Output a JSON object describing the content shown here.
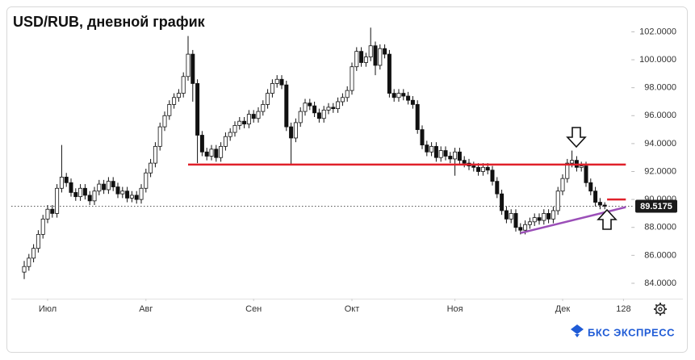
{
  "chart_data": {
    "type": "candlestick",
    "title": "USD/RUB, дневной график",
    "brand": "БКС ЭКСПРЕСС",
    "candles": [
      [
        84.8,
        85.6,
        84.3,
        85.2
      ],
      [
        85.2,
        86.1,
        84.9,
        85.8
      ],
      [
        85.8,
        86.8,
        85.5,
        86.5
      ],
      [
        86.5,
        87.8,
        86.2,
        87.5
      ],
      [
        87.5,
        88.9,
        87.2,
        88.6
      ],
      [
        88.6,
        89.6,
        88.3,
        89.3
      ],
      [
        89.3,
        89.6,
        88.7,
        89.0
      ],
      [
        89.0,
        91.1,
        88.7,
        90.8
      ],
      [
        90.8,
        93.9,
        90.5,
        91.6
      ],
      [
        91.6,
        91.9,
        90.9,
        91.2
      ],
      [
        91.2,
        91.5,
        90.2,
        90.5
      ],
      [
        90.5,
        90.8,
        89.9,
        90.2
      ],
      [
        90.2,
        91.1,
        89.9,
        90.8
      ],
      [
        90.8,
        91.1,
        90.0,
        90.3
      ],
      [
        90.3,
        90.6,
        89.6,
        89.9
      ],
      [
        89.9,
        90.9,
        89.6,
        90.6
      ],
      [
        90.6,
        91.4,
        90.3,
        91.1
      ],
      [
        91.1,
        91.4,
        90.4,
        90.7
      ],
      [
        90.7,
        91.6,
        90.4,
        91.3
      ],
      [
        91.3,
        91.6,
        90.6,
        90.9
      ],
      [
        90.9,
        91.2,
        90.1,
        90.4
      ],
      [
        90.4,
        90.9,
        90.1,
        90.6
      ],
      [
        90.6,
        90.9,
        89.8,
        90.1
      ],
      [
        90.1,
        90.6,
        89.8,
        90.3
      ],
      [
        90.3,
        90.6,
        89.7,
        90.0
      ],
      [
        90.0,
        91.1,
        89.7,
        90.8
      ],
      [
        90.8,
        92.2,
        90.5,
        91.9
      ],
      [
        91.9,
        92.9,
        91.6,
        92.6
      ],
      [
        92.6,
        94.1,
        92.3,
        93.8
      ],
      [
        93.8,
        95.5,
        93.5,
        95.2
      ],
      [
        95.2,
        96.3,
        94.9,
        96.0
      ],
      [
        96.0,
        97.1,
        95.7,
        96.8
      ],
      [
        96.8,
        97.6,
        96.5,
        97.3
      ],
      [
        97.3,
        97.9,
        97.0,
        97.6
      ],
      [
        97.6,
        99.1,
        97.3,
        98.8
      ],
      [
        98.8,
        101.7,
        98.5,
        100.4
      ],
      [
        100.4,
        100.7,
        97.0,
        98.3
      ],
      [
        98.3,
        98.6,
        92.6,
        94.6
      ],
      [
        94.6,
        94.9,
        93.1,
        93.4
      ],
      [
        93.4,
        93.7,
        92.8,
        93.1
      ],
      [
        93.1,
        93.9,
        92.8,
        93.6
      ],
      [
        93.6,
        93.9,
        92.7,
        93.0
      ],
      [
        93.0,
        94.1,
        92.7,
        93.8
      ],
      [
        93.8,
        94.8,
        93.5,
        94.5
      ],
      [
        94.5,
        95.1,
        94.2,
        94.8
      ],
      [
        94.8,
        95.6,
        94.5,
        95.3
      ],
      [
        95.3,
        95.9,
        95.0,
        95.6
      ],
      [
        95.6,
        95.9,
        95.1,
        95.4
      ],
      [
        95.4,
        96.4,
        95.1,
        96.1
      ],
      [
        96.1,
        96.4,
        95.5,
        95.8
      ],
      [
        95.8,
        96.6,
        95.5,
        96.3
      ],
      [
        96.3,
        97.1,
        96.0,
        96.8
      ],
      [
        96.8,
        97.9,
        96.5,
        97.6
      ],
      [
        97.6,
        98.6,
        97.3,
        98.3
      ],
      [
        98.3,
        98.9,
        98.0,
        98.6
      ],
      [
        98.6,
        98.9,
        97.9,
        98.2
      ],
      [
        98.2,
        98.5,
        94.9,
        95.2
      ],
      [
        95.2,
        95.5,
        92.5,
        94.4
      ],
      [
        94.4,
        95.8,
        94.1,
        95.5
      ],
      [
        95.5,
        96.6,
        95.2,
        96.3
      ],
      [
        96.3,
        97.2,
        96.0,
        96.9
      ],
      [
        96.9,
        97.2,
        96.4,
        96.7
      ],
      [
        96.7,
        97.0,
        95.9,
        96.2
      ],
      [
        96.2,
        96.5,
        95.5,
        95.8
      ],
      [
        95.8,
        96.7,
        95.5,
        96.4
      ],
      [
        96.4,
        96.9,
        96.1,
        96.6
      ],
      [
        96.6,
        96.9,
        96.2,
        96.5
      ],
      [
        96.5,
        97.3,
        96.2,
        97.0
      ],
      [
        97.0,
        97.6,
        96.7,
        97.3
      ],
      [
        97.3,
        98.1,
        97.0,
        97.8
      ],
      [
        97.8,
        99.8,
        97.5,
        99.5
      ],
      [
        99.5,
        100.9,
        99.2,
        100.6
      ],
      [
        100.6,
        100.9,
        99.5,
        99.8
      ],
      [
        99.8,
        100.5,
        99.5,
        100.2
      ],
      [
        100.2,
        102.3,
        99.9,
        101.0
      ],
      [
        101.0,
        101.3,
        98.9,
        99.6
      ],
      [
        99.6,
        101.1,
        99.3,
        100.8
      ],
      [
        100.8,
        101.1,
        100.1,
        100.4
      ],
      [
        100.4,
        100.7,
        97.3,
        97.6
      ],
      [
        97.6,
        97.9,
        97.0,
        97.3
      ],
      [
        97.3,
        97.9,
        97.0,
        97.6
      ],
      [
        97.6,
        97.9,
        97.1,
        97.4
      ],
      [
        97.4,
        97.7,
        96.8,
        97.1
      ],
      [
        97.1,
        97.4,
        96.5,
        96.8
      ],
      [
        96.8,
        97.1,
        94.7,
        95.0
      ],
      [
        95.0,
        95.3,
        93.6,
        93.9
      ],
      [
        93.9,
        94.2,
        93.1,
        93.4
      ],
      [
        93.4,
        94.1,
        93.1,
        93.8
      ],
      [
        93.8,
        94.1,
        92.7,
        93.0
      ],
      [
        93.0,
        93.8,
        92.7,
        93.5
      ],
      [
        93.5,
        93.8,
        92.8,
        93.1
      ],
      [
        93.1,
        93.4,
        92.6,
        92.9
      ],
      [
        92.9,
        93.7,
        91.7,
        93.4
      ],
      [
        93.4,
        93.7,
        92.5,
        92.8
      ],
      [
        92.8,
        93.1,
        92.3,
        92.6
      ],
      [
        92.6,
        92.9,
        92.1,
        92.4
      ],
      [
        92.4,
        92.7,
        92.0,
        92.3
      ],
      [
        92.3,
        92.6,
        91.7,
        92.0
      ],
      [
        92.0,
        92.6,
        91.7,
        92.3
      ],
      [
        92.3,
        92.6,
        91.8,
        92.1
      ],
      [
        92.1,
        92.4,
        91.0,
        91.3
      ],
      [
        91.3,
        91.6,
        90.1,
        90.4
      ],
      [
        90.4,
        90.7,
        88.9,
        89.2
      ],
      [
        89.2,
        89.5,
        88.3,
        88.6
      ],
      [
        88.6,
        89.3,
        88.3,
        89.0
      ],
      [
        89.0,
        89.3,
        87.7,
        88.0
      ],
      [
        88.0,
        88.3,
        87.5,
        87.8
      ],
      [
        87.8,
        88.5,
        87.5,
        88.2
      ],
      [
        88.2,
        88.7,
        87.9,
        88.4
      ],
      [
        88.4,
        89.0,
        88.1,
        88.7
      ],
      [
        88.7,
        89.0,
        88.2,
        88.5
      ],
      [
        88.5,
        89.3,
        88.2,
        89.0
      ],
      [
        89.0,
        89.3,
        88.3,
        88.6
      ],
      [
        88.6,
        89.5,
        88.3,
        89.2
      ],
      [
        89.2,
        90.9,
        88.9,
        90.6
      ],
      [
        90.6,
        91.8,
        90.3,
        91.5
      ],
      [
        91.5,
        92.9,
        91.2,
        92.6
      ],
      [
        92.6,
        93.5,
        92.3,
        92.8
      ],
      [
        92.8,
        93.1,
        92.0,
        92.3
      ],
      [
        92.3,
        92.7,
        92.0,
        92.4
      ],
      [
        92.4,
        92.7,
        90.9,
        91.2
      ],
      [
        91.2,
        91.5,
        90.3,
        90.6
      ],
      [
        90.6,
        90.9,
        89.5,
        89.8
      ],
      [
        89.8,
        90.1,
        89.3,
        89.6
      ],
      [
        89.6,
        89.8,
        89.3,
        89.5175
      ]
    ],
    "up_color": "#ffffff",
    "down_color": "#111111",
    "last_price": {
      "value": 89.5175,
      "label": "89.5175"
    },
    "lines": [
      {
        "color": "#e0202a",
        "x": [
          35,
          128.5
        ],
        "y": [
          92.5,
          92.5
        ]
      },
      {
        "color": "#e0202a",
        "x": [
          124.5,
          128.5
        ],
        "y": [
          90,
          90
        ]
      },
      {
        "color": "#9b4fb8",
        "x": [
          106,
          128.5
        ],
        "y": [
          87.6,
          89.45
        ]
      }
    ],
    "xlim": [
      -1,
      129
    ],
    "xticks": [
      {
        "value": 5,
        "label": "Июл"
      },
      {
        "value": 26,
        "label": "Авг"
      },
      {
        "value": 49,
        "label": "Сен"
      },
      {
        "value": 70,
        "label": "Окт"
      },
      {
        "value": 92,
        "label": "Ноя"
      },
      {
        "value": 115,
        "label": "Дек"
      },
      128
    ],
    "ylim": [
      82.9,
      103.7
    ],
    "yticks": [
      {
        "value": 84,
        "label": "84.0000"
      },
      {
        "value": 86,
        "label": "86.0000"
      },
      {
        "value": 88,
        "label": "88.0000"
      },
      {
        "value": 90,
        "label": "90.0000"
      },
      {
        "value": 92,
        "label": "92.0000"
      },
      {
        "value": 94,
        "label": "94.0000"
      },
      {
        "value": 96,
        "label": "96.0000"
      },
      {
        "value": 98,
        "label": "98.0000"
      },
      {
        "value": 100,
        "label": "100.0000"
      },
      {
        "value": 102,
        "label": "102.0000"
      }
    ]
  }
}
